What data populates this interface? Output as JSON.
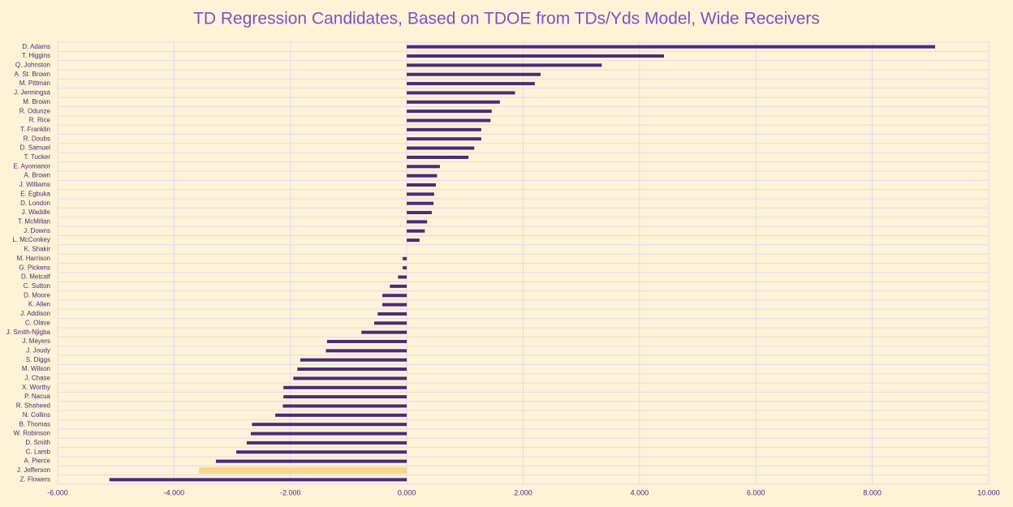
{
  "chart_data": {
    "type": "barh",
    "title": "TD Regression Candidates, Based on TDOE from TDs/Yds Model, Wide Receivers",
    "categories": [
      "D. Adams",
      "T. Higgins",
      "Q. Johnston",
      "A. St. Brown",
      "M. Pittman",
      "J. Jenningsa",
      "M. Brown",
      "R. Odunze",
      "R. Rice",
      "T. Franklin",
      "R. Doubs",
      "D. Samuel",
      "T. Tucker",
      "E. Ayomanor",
      "A. Brown",
      "J. Williams",
      "E. Egbuka",
      "D. London",
      "J. Waddle",
      "T. McMillan",
      "J. Downs",
      "L. McConkey",
      "K. Shakir",
      "M. Harrison",
      "G. Pickens",
      "D. Metcalf",
      "C. Sutton",
      "D. Moore",
      "K. Allen",
      "J. Addison",
      "C. Olave",
      "J. Smith-Njigba",
      "J. Meyers",
      "J. Joudy",
      "S. Diggs",
      "M. Wilson",
      "J. Chase",
      "X. Worthy",
      "P. Nacua",
      "R. Shaheed",
      "N. Collins",
      "B. Thomas",
      "W. Robinson",
      "D. Smith",
      "C. Lamb",
      "A. Pierce",
      "J. Jefferson",
      "Z. Flowers"
    ],
    "values": [
      9.08,
      4.42,
      3.35,
      2.3,
      2.2,
      1.86,
      1.6,
      1.46,
      1.44,
      1.28,
      1.28,
      1.16,
      1.06,
      0.57,
      0.52,
      0.5,
      0.47,
      0.46,
      0.43,
      0.35,
      0.31,
      0.22,
      0,
      -0.07,
      -0.07,
      -0.15,
      -0.29,
      -0.42,
      -0.42,
      -0.5,
      -0.56,
      -0.78,
      -1.37,
      -1.39,
      -1.83,
      -1.88,
      -1.95,
      -2.12,
      -2.12,
      -2.13,
      -2.26,
      -2.66,
      -2.68,
      -2.75,
      -2.93,
      -3.28,
      -3.57,
      -5.11
    ],
    "colors": [
      "#4b2a7b",
      "#4b2a7b",
      "#4b2a7b",
      "#4b2a7b",
      "#4b2a7b",
      "#4b2a7b",
      "#4b2a7b",
      "#4b2a7b",
      "#4b2a7b",
      "#4b2a7b",
      "#4b2a7b",
      "#4b2a7b",
      "#4b2a7b",
      "#4b2a7b",
      "#4b2a7b",
      "#4b2a7b",
      "#4b2a7b",
      "#4b2a7b",
      "#4b2a7b",
      "#4b2a7b",
      "#4b2a7b",
      "#4b2a7b",
      "#4b2a7b",
      "#4b2a7b",
      "#4b2a7b",
      "#4b2a7b",
      "#4b2a7b",
      "#4b2a7b",
      "#4b2a7b",
      "#4b2a7b",
      "#4b2a7b",
      "#4b2a7b",
      "#4b2a7b",
      "#4b2a7b",
      "#4b2a7b",
      "#4b2a7b",
      "#4b2a7b",
      "#4b2a7b",
      "#4b2a7b",
      "#4b2a7b",
      "#4b2a7b",
      "#4b2a7b",
      "#4b2a7b",
      "#4b2a7b",
      "#4b2a7b",
      "#4b2a7b",
      "#f5d68a",
      "#4b2a7b"
    ],
    "xlim": [
      -6,
      10
    ],
    "xticks": [
      {
        "value": -6,
        "label": "-6.000"
      },
      {
        "value": -4,
        "label": "-4.000"
      },
      {
        "value": -2,
        "label": "-2.000"
      },
      {
        "value": 0,
        "label": "0.000"
      },
      {
        "value": 2,
        "label": "2.000"
      },
      {
        "value": 4,
        "label": "4.000"
      },
      {
        "value": 6,
        "label": "6.000"
      },
      {
        "value": 8,
        "label": "8.000"
      },
      {
        "value": 10,
        "label": "10.000"
      }
    ],
    "grid": true
  }
}
